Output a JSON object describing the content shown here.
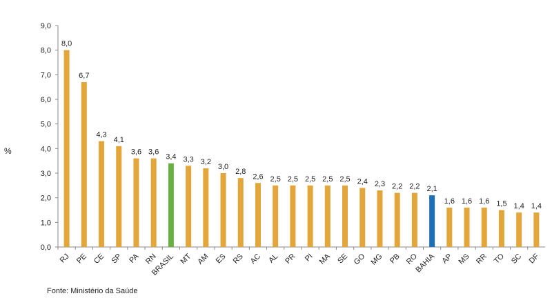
{
  "chart_data": {
    "type": "bar",
    "title": "",
    "ylabel": "%",
    "xlabel": "",
    "ylim": [
      0,
      9
    ],
    "yticks": [
      "0,0",
      "1,0",
      "2,0",
      "3,0",
      "4,0",
      "5,0",
      "6,0",
      "7,0",
      "8,0",
      "9,0"
    ],
    "categories": [
      "RJ",
      "PE",
      "CE",
      "SP",
      "PA",
      "RN",
      "BRASIL",
      "MT",
      "AM",
      "ES",
      "RS",
      "AC",
      "AL",
      "PR",
      "PI",
      "MA",
      "SE",
      "GO",
      "MG",
      "PB",
      "RO",
      "BAHIA",
      "AP",
      "MS",
      "RR",
      "TO",
      "SC",
      "DF"
    ],
    "values": [
      8.0,
      6.7,
      4.3,
      4.1,
      3.6,
      3.6,
      3.4,
      3.3,
      3.2,
      3.0,
      2.8,
      2.6,
      2.5,
      2.5,
      2.5,
      2.5,
      2.5,
      2.4,
      2.3,
      2.2,
      2.2,
      2.1,
      1.6,
      1.6,
      1.6,
      1.5,
      1.4,
      1.4
    ],
    "value_labels": [
      "8,0",
      "6,7",
      "4,3",
      "4,1",
      "3,6",
      "3,6",
      "3,4",
      "3,3",
      "3,2",
      "3,0",
      "2,8",
      "2,6",
      "2,5",
      "2,5",
      "2,5",
      "2,5",
      "2,5",
      "2,4",
      "2,3",
      "2,2",
      "2,2",
      "2,1",
      "1,6",
      "1,6",
      "1,6",
      "1,5",
      "1,4",
      "1,4"
    ],
    "grid": false,
    "legend": "none",
    "colors": {
      "default": "#E2A63A",
      "BRASIL": "#6AAF45",
      "BAHIA": "#1D6FB8"
    }
  },
  "footer": {
    "source": "Fonte: Ministério da Saúde"
  }
}
